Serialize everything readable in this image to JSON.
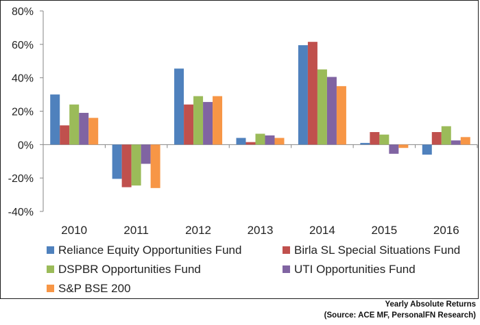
{
  "chart_data": {
    "type": "bar",
    "categories": [
      "2010",
      "2011",
      "2012",
      "2013",
      "2014",
      "2015",
      "2016"
    ],
    "series": [
      {
        "name": "Reliance Equity Opportunities Fund",
        "color": "#4f81bd",
        "values": [
          30,
          -20.5,
          45.5,
          4,
          59.5,
          1,
          -6
        ]
      },
      {
        "name": "Birla SL Special Situations Fund",
        "color": "#c0504d",
        "values": [
          11.5,
          -25.5,
          24,
          1.5,
          61.5,
          7.5,
          7.5
        ]
      },
      {
        "name": "DSPBR Opportunities Fund",
        "color": "#9bbb59",
        "values": [
          24,
          -24.5,
          29,
          6.5,
          45,
          6,
          11
        ]
      },
      {
        "name": "UTI Opportunities Fund",
        "color": "#8064a2",
        "values": [
          19,
          -11.5,
          25.5,
          5.5,
          40.5,
          -5.5,
          2.5
        ]
      },
      {
        "name": "S&P BSE 200",
        "color": "#f79646",
        "values": [
          16,
          -26,
          29,
          4,
          35,
          -2,
          4.5
        ]
      }
    ],
    "yticks": [
      "-40%",
      "-20%",
      "0%",
      "20%",
      "40%",
      "60%",
      "80%"
    ],
    "ylim": [
      -40,
      80
    ],
    "grid": false,
    "legend_position": "bottom"
  },
  "footnote": {
    "line1": "Yearly Absolute Returns",
    "line2": "(Source: ACE MF, PersonalFN Research)"
  }
}
